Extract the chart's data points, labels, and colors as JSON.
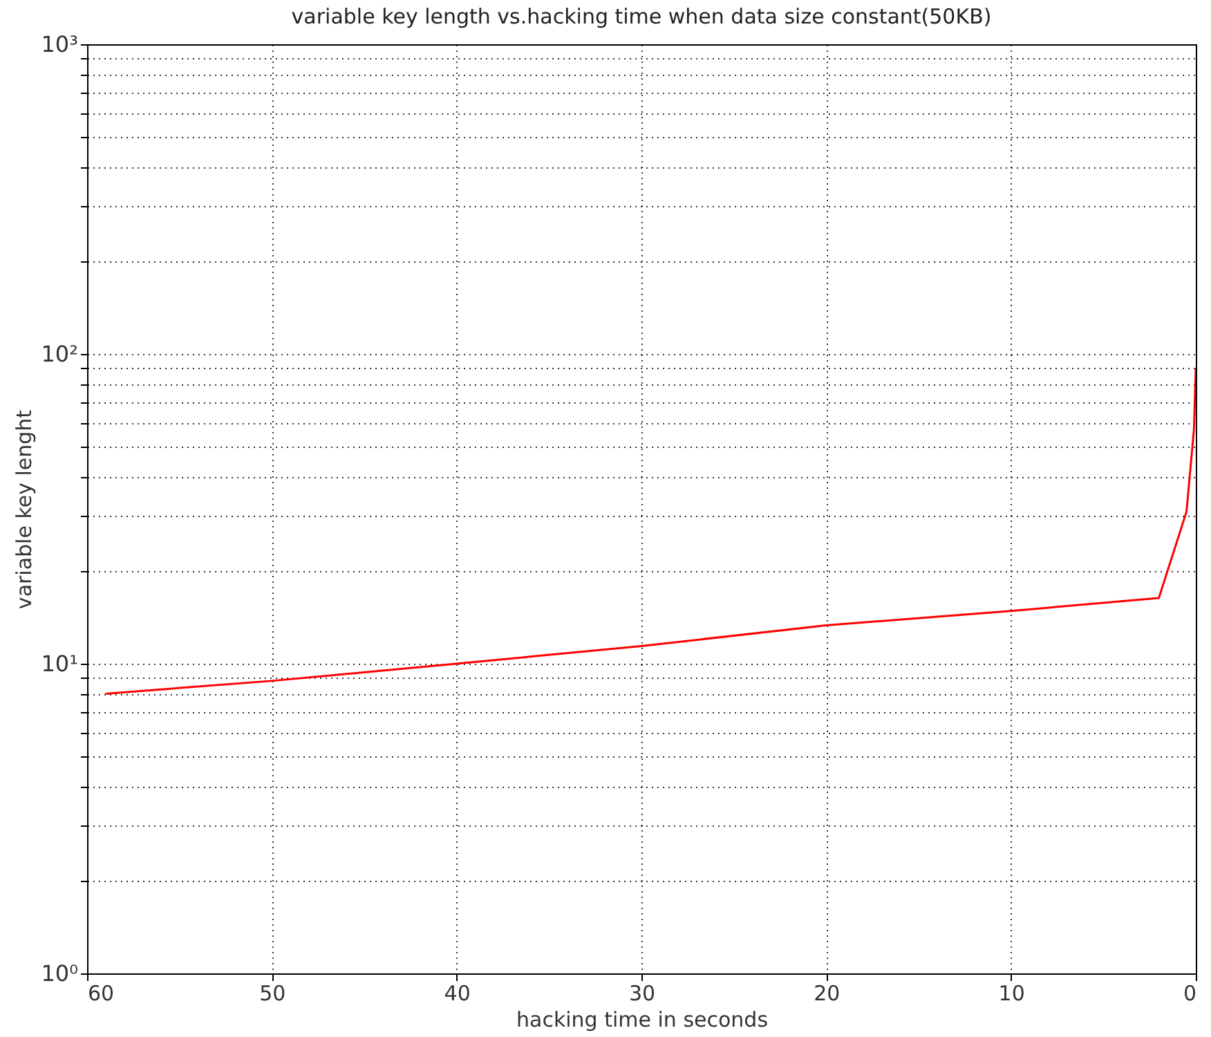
{
  "chart_data": {
    "type": "line",
    "title": "variable key length vs.hacking time when data size constant(50KB)",
    "xlabel": "hacking time in seconds",
    "ylabel": "variable key lenght",
    "log": "y",
    "grid": true,
    "line_style": "solid",
    "marker": "none",
    "x": [
      59,
      50,
      40,
      30,
      20,
      10,
      2,
      0.5,
      0.1,
      0
    ],
    "series": [
      {
        "color": "#ff0000",
        "values": [
          8,
          8.8,
          10,
          11.4,
          13.3,
          14.8,
          16.3,
          31,
          57,
          90
        ]
      }
    ],
    "xlim": [
      60,
      0
    ],
    "xticks": [
      60,
      50,
      40,
      30,
      20,
      10,
      0
    ],
    "ylim": [
      1,
      1000
    ],
    "yticks": [
      {
        "value": 1,
        "label": "10⁰"
      },
      {
        "value": 2,
        "label": null
      },
      {
        "value": 3,
        "label": null
      },
      {
        "value": 4,
        "label": null
      },
      {
        "value": 5,
        "label": null
      },
      {
        "value": 6,
        "label": null
      },
      {
        "value": 7,
        "label": null
      },
      {
        "value": 8,
        "label": null
      },
      {
        "value": 9,
        "label": null
      },
      {
        "value": 10,
        "label": "10¹"
      },
      {
        "value": 20,
        "label": null
      },
      {
        "value": 30,
        "label": null
      },
      {
        "value": 40,
        "label": null
      },
      {
        "value": 50,
        "label": null
      },
      {
        "value": 60,
        "label": null
      },
      {
        "value": 70,
        "label": null
      },
      {
        "value": 80,
        "label": null
      },
      {
        "value": 90,
        "label": null
      },
      {
        "value": 100,
        "label": "10²"
      },
      {
        "value": 200,
        "label": null
      },
      {
        "value": 300,
        "label": null
      },
      {
        "value": 400,
        "label": null
      },
      {
        "value": 500,
        "label": null
      },
      {
        "value": 600,
        "label": null
      },
      {
        "value": 700,
        "label": null
      },
      {
        "value": 800,
        "label": null
      },
      {
        "value": 900,
        "label": null
      },
      {
        "value": 1000,
        "label": "10³"
      }
    ]
  }
}
